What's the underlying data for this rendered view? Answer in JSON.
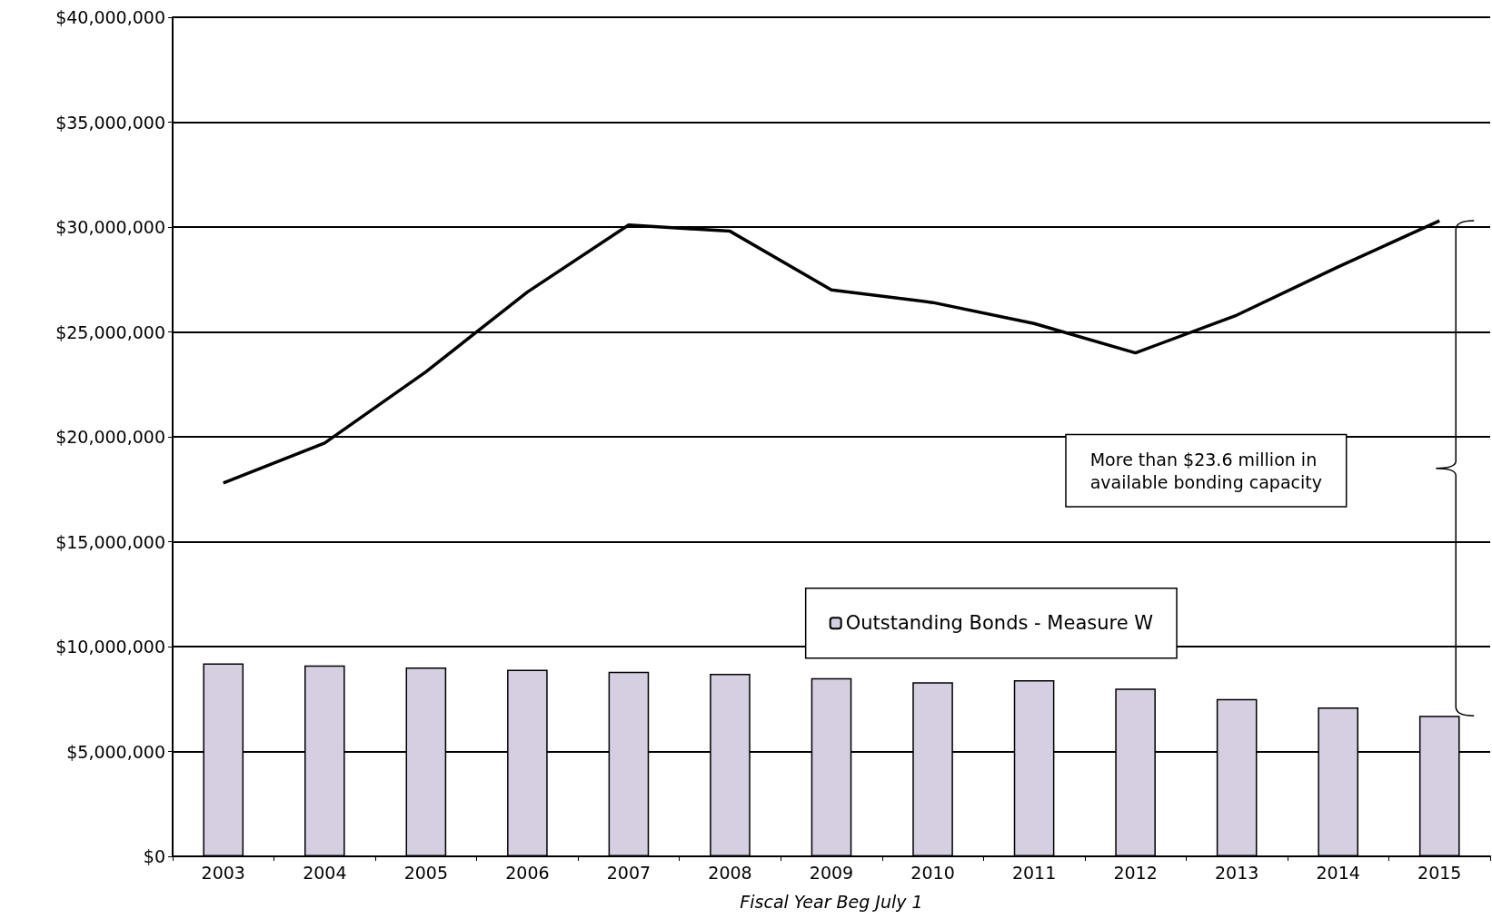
{
  "chart_data": {
    "type": "bar",
    "xlabel": "Fiscal Year Beg July 1",
    "categories": [
      "2003",
      "2004",
      "2005",
      "2006",
      "2007",
      "2008",
      "2009",
      "2010",
      "2011",
      "2012",
      "2013",
      "2014",
      "2015"
    ],
    "series": [
      {
        "name": "Outstanding Bonds - Measure W",
        "color": "#d5cfe1",
        "values": [
          9200000,
          9100000,
          9000000,
          8900000,
          8800000,
          8700000,
          8500000,
          8300000,
          8400000,
          8000000,
          7500000,
          7100000,
          6700000
        ]
      },
      {
        "type": "line",
        "color": "#000000",
        "values": [
          17800000,
          19700000,
          23100000,
          26900000,
          30100000,
          29800000,
          27000000,
          26400000,
          25400000,
          24000000,
          25800000,
          28100000,
          30300000
        ]
      }
    ],
    "ylim": [
      0,
      40000000
    ],
    "yticks": [
      {
        "value": 0,
        "label": "$0"
      },
      {
        "value": 5000000,
        "label": "$5,000,000"
      },
      {
        "value": 10000000,
        "label": "$10,000,000"
      },
      {
        "value": 15000000,
        "label": "$15,000,000"
      },
      {
        "value": 20000000,
        "label": "$20,000,000"
      },
      {
        "value": 25000000,
        "label": "$25,000,000"
      },
      {
        "value": 30000000,
        "label": "$30,000,000"
      },
      {
        "value": 35000000,
        "label": "$35,000,000"
      },
      {
        "value": 40000000,
        "label": "$40,000,000"
      }
    ],
    "grid": "y",
    "legend": "bottom",
    "marker": "none",
    "annotations": [
      "More than $23.6 million in\navailable bonding capacity"
    ]
  }
}
